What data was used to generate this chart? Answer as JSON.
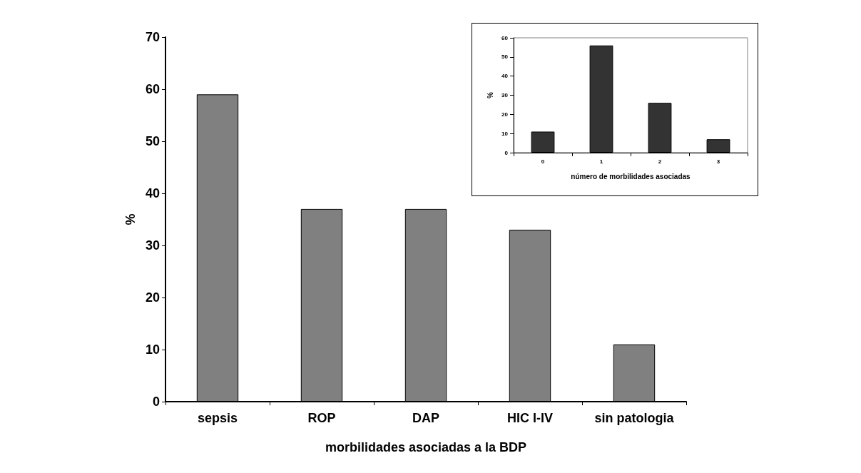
{
  "chart_data": [
    {
      "type": "bar",
      "xlabel": "morbilidades asociadas a la BDP",
      "ylabel": "%",
      "categories": [
        "sepsis",
        "ROP",
        "DAP",
        "HIC I-IV",
        "sin patologia"
      ],
      "values": [
        59,
        37,
        37,
        33,
        11
      ],
      "color": "#808080",
      "ylim": [
        0,
        70
      ],
      "yticks": [
        0,
        10,
        20,
        30,
        40,
        50,
        60,
        70
      ],
      "grid": false
    },
    {
      "type": "bar",
      "xlabel": "número de morbilidades asociadas",
      "ylabel": "%",
      "categories": [
        "0",
        "1",
        "2",
        "3"
      ],
      "values": [
        11,
        56,
        26,
        7
      ],
      "color": "#333333",
      "ylim": [
        0,
        60
      ],
      "yticks": [
        0,
        10,
        20,
        30,
        40,
        50,
        60
      ],
      "grid": false
    }
  ]
}
